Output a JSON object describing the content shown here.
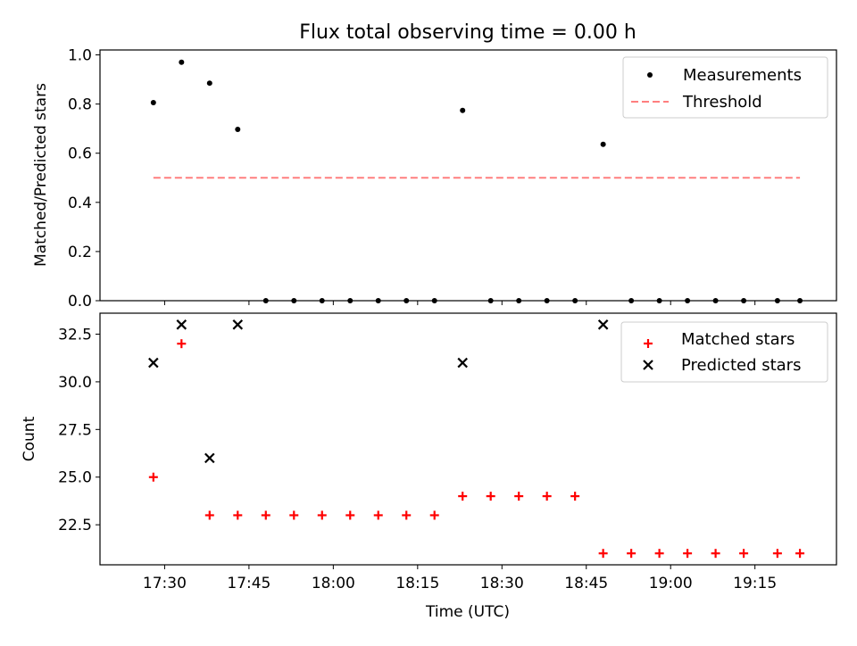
{
  "chart_data": [
    {
      "type": "scatter",
      "title": "Flux total observing time = 0.00 h",
      "ylabel": "Matched/Predicted stars",
      "xlabel": "",
      "ylim": [
        0,
        1.02
      ],
      "y_ticks": [
        "0.0",
        "0.2",
        "0.4",
        "0.6",
        "0.8",
        "1.0"
      ],
      "legend_position": "top-right",
      "series": [
        {
          "name": "Measurements",
          "kind": "scatter",
          "color": "#000000",
          "x": [
            "17:28",
            "17:33",
            "17:38",
            "17:43",
            "17:48",
            "17:53",
            "17:58",
            "18:03",
            "18:08",
            "18:13",
            "18:18",
            "18:23",
            "18:28",
            "18:33",
            "18:38",
            "18:43",
            "18:48",
            "18:53",
            "18:58",
            "19:03",
            "19:08",
            "19:13",
            "19:19",
            "19:23"
          ],
          "values": [
            0.806,
            0.97,
            0.885,
            0.697,
            0,
            0,
            0,
            0,
            0,
            0,
            0,
            0.774,
            0,
            0,
            0,
            0,
            0.636,
            0,
            0,
            0,
            0,
            0,
            0,
            0
          ]
        },
        {
          "name": "Threshold",
          "kind": "dashed-line",
          "color": "#ff7f7f",
          "x": [
            "17:28",
            "19:23"
          ],
          "values": [
            0.5,
            0.5
          ]
        }
      ]
    },
    {
      "type": "scatter",
      "xlabel": "Time (UTC)",
      "ylabel": "Count",
      "x_ticks": [
        "17:30",
        "17:45",
        "18:00",
        "18:15",
        "18:30",
        "18:45",
        "19:00",
        "19:15"
      ],
      "y_ticks": [
        "22.5",
        "25.0",
        "27.5",
        "30.0",
        "32.5"
      ],
      "ylim": [
        20.4,
        33.6
      ],
      "legend_position": "top-right",
      "series": [
        {
          "name": "Matched stars",
          "marker": "plus",
          "color": "#ff0000",
          "x": [
            "17:28",
            "17:33",
            "17:38",
            "17:43",
            "17:48",
            "17:53",
            "17:58",
            "18:03",
            "18:08",
            "18:13",
            "18:18",
            "18:23",
            "18:28",
            "18:33",
            "18:38",
            "18:43",
            "18:48",
            "18:53",
            "18:58",
            "19:03",
            "19:08",
            "19:13",
            "19:19",
            "19:23"
          ],
          "values": [
            25,
            32,
            23,
            23,
            23,
            23,
            23,
            23,
            23,
            23,
            23,
            24,
            24,
            24,
            24,
            24,
            21,
            21,
            21,
            21,
            21,
            21,
            21,
            21
          ]
        },
        {
          "name": "Predicted stars",
          "marker": "x",
          "color": "#000000",
          "x": [
            "17:28",
            "17:33",
            "17:38",
            "17:43",
            "18:23",
            "18:48"
          ],
          "values": [
            31,
            33,
            26,
            33,
            31,
            33
          ]
        }
      ]
    }
  ]
}
